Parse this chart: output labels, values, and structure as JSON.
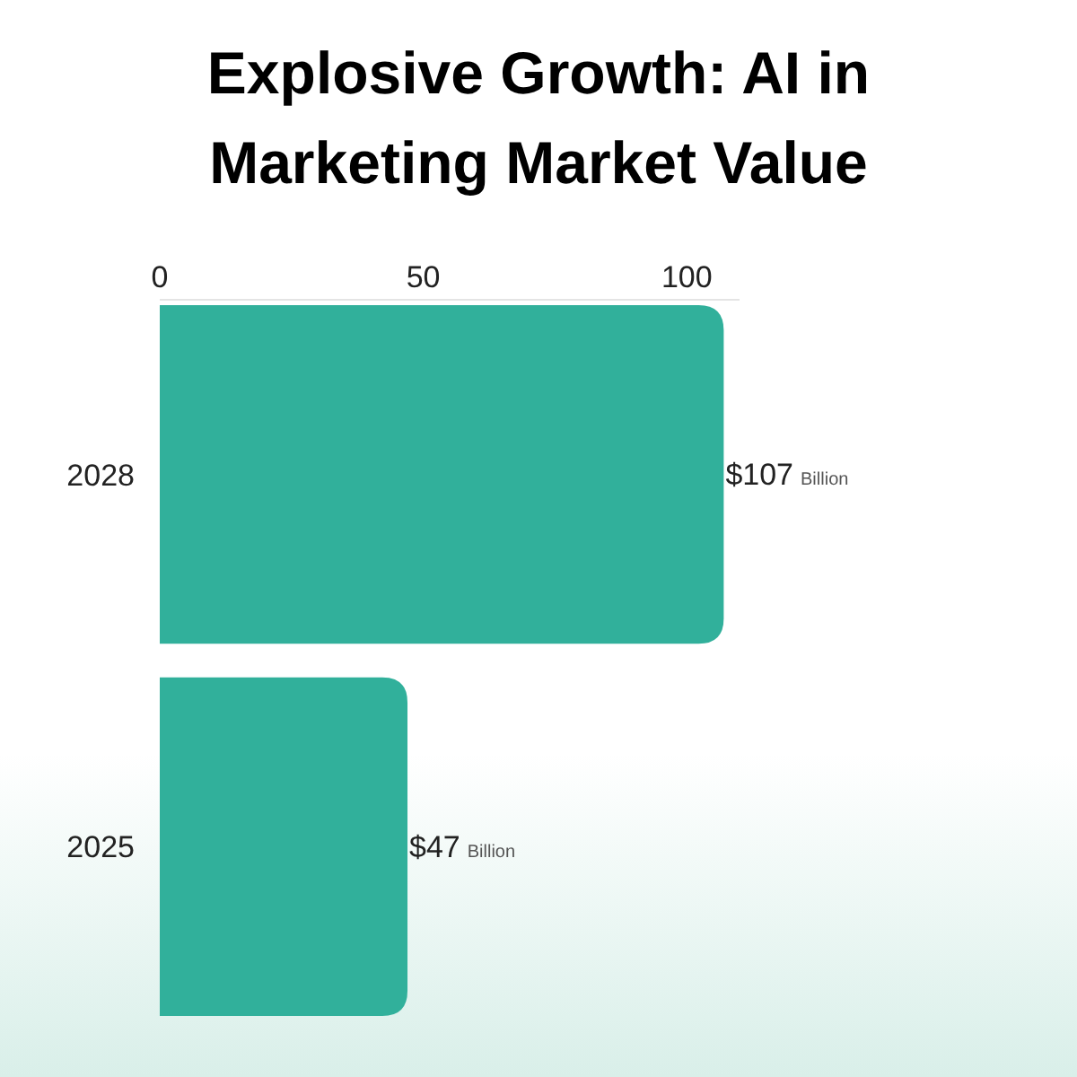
{
  "chart_data": {
    "type": "bar",
    "orientation": "horizontal",
    "title": "Explosive Growth: AI in Marketing Market Value",
    "categories": [
      "2028",
      "2025"
    ],
    "values": [
      107,
      47
    ],
    "color": "#31b09b",
    "xlim": [
      0,
      110
    ],
    "xticks": [
      0,
      50,
      100
    ],
    "value_labels": [
      "$107 Billion",
      "$47 Billion"
    ]
  }
}
